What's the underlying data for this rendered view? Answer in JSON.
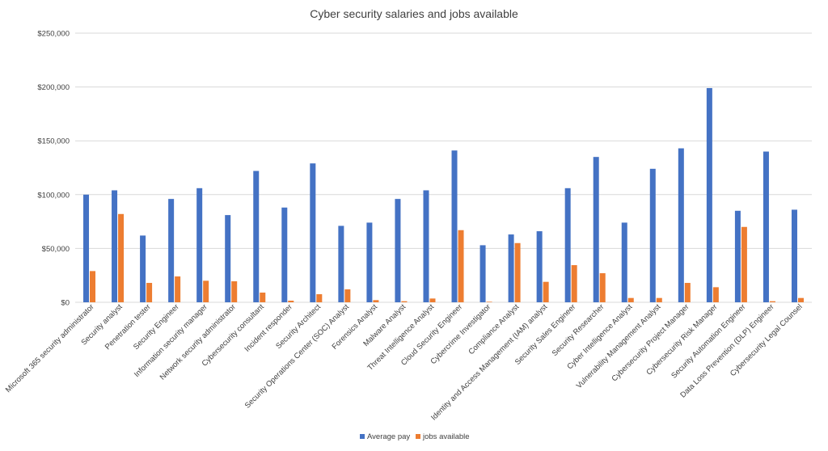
{
  "chart_data": {
    "type": "bar",
    "title": "Cyber security salaries and jobs available",
    "xlabel": "",
    "ylabel": "",
    "ylim": [
      0,
      250000
    ],
    "y_ticks": [
      "$0",
      "$50,000",
      "$100,000",
      "$150,000",
      "$200,000",
      "$250,000"
    ],
    "y_tick_values": [
      0,
      50000,
      100000,
      150000,
      200000,
      250000
    ],
    "grid": true,
    "legend_position": "bottom",
    "categories": [
      "Microsoft 365 security administrator",
      "Security analyst",
      "Penetration tester",
      "Security Engineer",
      "Information security manager",
      "Network security administrator",
      "Cybersecurity consultant",
      "Incident responder",
      "Security Architect",
      "Security Operations Center (SOC) Analyst",
      "Forensics Analyst",
      "Malware Analyst",
      "Threat Intelligence Analyst",
      "Cloud Security Engineer",
      "Cybercrime Investigator",
      "Compliance Analyst",
      "Identity and Access Management (IAM) analyst",
      "Security Sales Engineer",
      "Security Researcher",
      "Cyber Intelligence Analyst",
      "Vulnerability Management Analyst",
      "Cybersecurity Project Manager",
      "Cybersecurity Risk Manager",
      "Security Automation Engineer",
      "Data Loss Prevention (DLP) Engineer",
      "Cybersecurity Legal Counsel"
    ],
    "series": [
      {
        "name": "Average pay",
        "color": "#4472c4",
        "values": [
          100000,
          104000,
          62000,
          96000,
          106000,
          81000,
          122000,
          88000,
          129000,
          71000,
          74000,
          96000,
          104000,
          141000,
          53000,
          63000,
          66000,
          106000,
          135000,
          74000,
          124000,
          143000,
          199000,
          85000,
          140000,
          86000
        ]
      },
      {
        "name": "jobs available",
        "color": "#ed7d31",
        "values": [
          29000,
          82000,
          18000,
          24000,
          20000,
          19500,
          9000,
          1500,
          7500,
          12000,
          2000,
          1000,
          3500,
          67000,
          500,
          55000,
          19000,
          34500,
          27000,
          4000,
          4000,
          18000,
          14000,
          70000,
          1000,
          4000
        ]
      }
    ]
  }
}
